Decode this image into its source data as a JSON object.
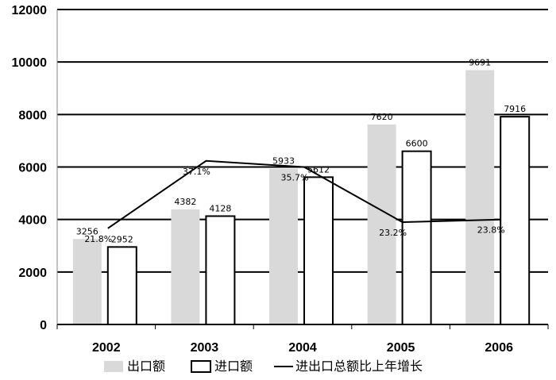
{
  "chart_data": {
    "type": "bar",
    "categories": [
      "2002",
      "2003",
      "2004",
      "2005",
      "2006"
    ],
    "series": [
      {
        "name": "出口额",
        "kind": "bar",
        "color": "#d9d9d9",
        "values": [
          3256,
          4382,
          5933,
          7620,
          9691
        ]
      },
      {
        "name": "进口额",
        "kind": "bar",
        "color": "#ffffff",
        "values": [
          2952,
          4128,
          5612,
          6600,
          7916
        ]
      },
      {
        "name": "进出口总额比上年增长",
        "kind": "line",
        "color": "#000000",
        "values": [
          21.8,
          37.1,
          35.7,
          23.2,
          23.8
        ],
        "labels": [
          "21.8%",
          "37.1%",
          "35.7%",
          "23.2%",
          "23.8%"
        ]
      }
    ],
    "yticks": [
      "0",
      "2000",
      "4000",
      "6000",
      "8000",
      "10000",
      "12000"
    ],
    "ylim": [
      0,
      12000
    ],
    "grid": true,
    "legend": "bottom"
  }
}
